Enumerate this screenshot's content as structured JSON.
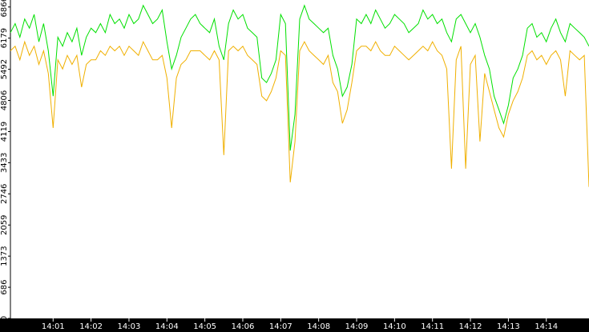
{
  "chart_data": {
    "type": "line",
    "categories": [
      null,
      null,
      null,
      null,
      null,
      null,
      null,
      null,
      null,
      "14:01",
      null,
      null,
      null,
      null,
      null,
      null,
      null,
      "14:02",
      null,
      null,
      null,
      null,
      null,
      null,
      null,
      "14:03",
      null,
      null,
      null,
      null,
      null,
      null,
      null,
      "14:04",
      null,
      null,
      null,
      null,
      null,
      null,
      null,
      "14:05",
      null,
      null,
      null,
      null,
      null,
      null,
      null,
      "14:06",
      null,
      null,
      null,
      null,
      null,
      null,
      null,
      "14:07",
      null,
      null,
      null,
      null,
      null,
      null,
      null,
      "14:08",
      null,
      null,
      null,
      null,
      null,
      null,
      null,
      "14:09",
      null,
      null,
      null,
      null,
      null,
      null,
      null,
      "14:10",
      null,
      null,
      null,
      null,
      null,
      null,
      null,
      "14:11",
      null,
      null,
      null,
      null,
      null,
      null,
      null,
      "14:12",
      null,
      null,
      null,
      null,
      null,
      null,
      null,
      "14:13",
      null,
      null,
      null,
      null,
      null,
      null,
      null,
      "14:14",
      null,
      null,
      null,
      null,
      null,
      null,
      null,
      null,
      null
    ],
    "series": [
      {
        "color": "#00e000",
        "values": [
          6300,
          6500,
          6200,
          6600,
          6400,
          6700,
          6100,
          6500,
          5900,
          4900,
          6200,
          6000,
          6300,
          6100,
          6400,
          5800,
          6200,
          6400,
          6300,
          6500,
          6300,
          6700,
          6500,
          6600,
          6400,
          6700,
          6500,
          6600,
          6900,
          6700,
          6500,
          6600,
          6800,
          6100,
          5500,
          5800,
          6200,
          6400,
          6600,
          6700,
          6500,
          6400,
          6300,
          6600,
          6000,
          5700,
          6500,
          6800,
          6600,
          6700,
          6400,
          6300,
          6200,
          5300,
          5200,
          5400,
          5700,
          6700,
          6500,
          3700,
          4500,
          6600,
          6900,
          6600,
          6500,
          6400,
          6300,
          6400,
          5800,
          5500,
          4900,
          5100,
          5600,
          6600,
          6500,
          6700,
          6500,
          6800,
          6600,
          6400,
          6500,
          6700,
          6600,
          6500,
          6300,
          6400,
          6500,
          6800,
          6600,
          6700,
          6500,
          6600,
          6300,
          6100,
          6600,
          6700,
          6500,
          6300,
          6500,
          6200,
          5800,
          5500,
          4900,
          4600,
          4300,
          4700,
          5300,
          5500,
          5800,
          6400,
          6500,
          6200,
          6300,
          6100,
          6400,
          6600,
          6300,
          6100,
          6500,
          6400,
          6300,
          6200,
          6000
        ]
      },
      {
        "color": "#f0b000",
        "values": [
          5900,
          6000,
          5700,
          6100,
          5800,
          6000,
          5600,
          5900,
          5400,
          4200,
          5700,
          5500,
          5800,
          5600,
          5800,
          5100,
          5600,
          5700,
          5700,
          5900,
          5800,
          6000,
          5900,
          6000,
          5800,
          6000,
          5900,
          5800,
          6100,
          5900,
          5700,
          5700,
          5800,
          5300,
          4200,
          5300,
          5600,
          5700,
          5900,
          5900,
          5900,
          5800,
          5700,
          5900,
          5700,
          3600,
          5900,
          6000,
          5900,
          6000,
          5800,
          5700,
          5600,
          4900,
          4800,
          5000,
          5300,
          5900,
          5800,
          3000,
          3900,
          5900,
          6100,
          5900,
          5800,
          5700,
          5600,
          5800,
          5200,
          5000,
          4300,
          4600,
          5200,
          5900,
          6000,
          6000,
          5900,
          6100,
          5900,
          5800,
          5800,
          6000,
          5900,
          5800,
          5700,
          5800,
          5900,
          6000,
          5900,
          6100,
          5900,
          5800,
          5500,
          3300,
          5700,
          6000,
          3300,
          5600,
          5800,
          3900,
          5400,
          5000,
          4600,
          4200,
          4000,
          4500,
          4800,
          5000,
          5300,
          5800,
          5900,
          5700,
          5800,
          5600,
          5800,
          5900,
          5700,
          4900,
          5900,
          5800,
          5700,
          5800,
          2900
        ]
      }
    ],
    "ylim": [
      0,
      7020
    ],
    "yticks": [
      0,
      686,
      1373,
      2059,
      2746,
      3433,
      4119,
      4806,
      5492,
      6179,
      6866
    ]
  }
}
